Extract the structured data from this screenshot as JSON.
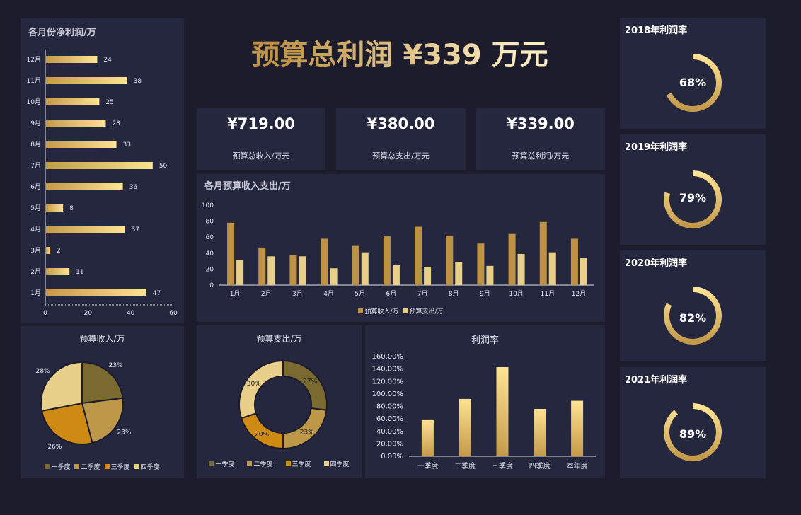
{
  "headline": {
    "text": "预算总利润 ¥339 万元"
  },
  "kpis": [
    {
      "value": "¥719.00",
      "label": "预算总收入/万元"
    },
    {
      "value": "¥380.00",
      "label": "预算总支出/万元"
    },
    {
      "value": "¥339.00",
      "label": "预算总利润/万元"
    }
  ],
  "panels": {
    "net_profit": {
      "title": "各月份净利润/万"
    },
    "monthly": {
      "title": "各月预算收入支出/万"
    },
    "income_pie": {
      "title": "预算收入/万"
    },
    "expense_donut": {
      "title": "预算支出/万"
    },
    "margin": {
      "title": "利润率"
    }
  },
  "gauges": [
    {
      "title": "2018年利润率",
      "value": 68,
      "label": "68%"
    },
    {
      "title": "2019年利润率",
      "value": 79,
      "label": "79%"
    },
    {
      "title": "2020年利润率",
      "value": 82,
      "label": "82%"
    },
    {
      "title": "2021年利润率",
      "value": 89,
      "label": "89%"
    }
  ],
  "colors": {
    "background": "#1c1c2d",
    "panel": "#25273f",
    "gold_dark": "#c49a4a",
    "gold_light": "#fde393",
    "income_bar": "#be9242",
    "expense_bar": "#e8d088",
    "quarters": [
      "#7a6a2f",
      "#bc9848",
      "#cf8a14",
      "#e8d08a"
    ]
  },
  "chart_data": [
    {
      "id": "net_profit",
      "type": "bar",
      "orientation": "horizontal",
      "title": "各月份净利润/万",
      "categories": [
        "1月",
        "2月",
        "3月",
        "4月",
        "5月",
        "6月",
        "7月",
        "8月",
        "9月",
        "10月",
        "11月",
        "12月"
      ],
      "values": [
        47,
        11,
        2,
        37,
        8,
        36,
        50,
        33,
        28,
        25,
        38,
        24
      ],
      "xlim": [
        0,
        60
      ],
      "xticks": [
        "0",
        "20",
        "40",
        "60"
      ],
      "data_labels": true
    },
    {
      "id": "monthly",
      "type": "bar",
      "title": "各月预算收入支出/万",
      "categories": [
        "1月",
        "2月",
        "3月",
        "4月",
        "5月",
        "6月",
        "7月",
        "8月",
        "9月",
        "10月",
        "11月",
        "12月"
      ],
      "series": [
        {
          "name": "预算收入/万",
          "values": [
            78,
            47,
            38,
            58,
            49,
            61,
            73,
            62,
            52,
            64,
            79,
            58
          ]
        },
        {
          "name": "预算支出/万",
          "values": [
            31,
            36,
            36,
            21,
            41,
            25,
            23,
            29,
            24,
            39,
            41,
            34
          ]
        }
      ],
      "ylim": [
        0,
        100
      ],
      "yticks": [
        "0",
        "20",
        "40",
        "60",
        "80",
        "100"
      ],
      "legend_position": "bottom"
    },
    {
      "id": "income_pie",
      "type": "pie",
      "title": "预算收入/万",
      "categories": [
        "一季度",
        "二季度",
        "三季度",
        "四季度"
      ],
      "values": [
        23,
        23,
        26,
        28
      ],
      "labels": [
        "23%",
        "23%",
        "26%",
        "28%"
      ],
      "legend_position": "bottom"
    },
    {
      "id": "expense_donut",
      "type": "pie",
      "donut": true,
      "title": "预算支出/万",
      "categories": [
        "一季度",
        "二季度",
        "三季度",
        "四季度"
      ],
      "values": [
        27,
        23,
        20,
        30
      ],
      "labels": [
        "27%",
        "23%",
        "20%",
        "30%"
      ],
      "legend_position": "bottom"
    },
    {
      "id": "margin",
      "type": "bar",
      "title": "利润率",
      "categories": [
        "一季度",
        "二季度",
        "三季度",
        "四季度",
        "本年度"
      ],
      "values": [
        58,
        92,
        143,
        76,
        89
      ],
      "unit": "%",
      "ylim": [
        0,
        160
      ],
      "yticks": [
        "0.00%",
        "20.00%",
        "40.00%",
        "60.00%",
        "80.00%",
        "100.00%",
        "120.00%",
        "140.00%",
        "160.00%"
      ]
    }
  ]
}
